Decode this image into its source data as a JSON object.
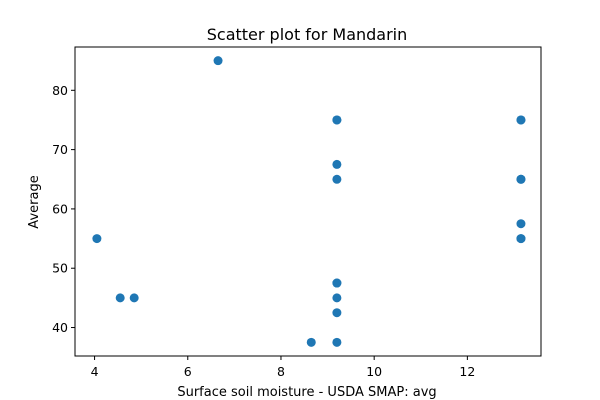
{
  "chart_data": {
    "type": "scatter",
    "title": "Scatter plot for Mandarin",
    "xlabel": "Surface soil moisture - USDA SMAP: avg",
    "ylabel": "Average",
    "xlim": [
      3.58,
      13.58
    ],
    "ylim": [
      35.2,
      87.3
    ],
    "xticks": [
      4,
      6,
      8,
      10,
      12
    ],
    "yticks": [
      40,
      50,
      60,
      70,
      80
    ],
    "grid": false,
    "marker_color": "#1f77b4",
    "points": [
      {
        "x": 6.65,
        "y": 85.0
      },
      {
        "x": 4.05,
        "y": 55.0
      },
      {
        "x": 4.55,
        "y": 45.0
      },
      {
        "x": 4.85,
        "y": 45.0
      },
      {
        "x": 8.65,
        "y": 37.5
      },
      {
        "x": 9.2,
        "y": 75.0
      },
      {
        "x": 9.2,
        "y": 75.0
      },
      {
        "x": 9.2,
        "y": 67.5
      },
      {
        "x": 9.2,
        "y": 65.0
      },
      {
        "x": 9.2,
        "y": 47.5
      },
      {
        "x": 9.2,
        "y": 47.5
      },
      {
        "x": 9.2,
        "y": 45.0
      },
      {
        "x": 9.2,
        "y": 42.5
      },
      {
        "x": 9.2,
        "y": 37.5
      },
      {
        "x": 13.15,
        "y": 75.0
      },
      {
        "x": 13.15,
        "y": 75.0
      },
      {
        "x": 13.15,
        "y": 65.0
      },
      {
        "x": 13.15,
        "y": 65.0
      },
      {
        "x": 13.15,
        "y": 57.5
      },
      {
        "x": 13.15,
        "y": 55.0
      },
      {
        "x": 13.15,
        "y": 55.0
      }
    ]
  }
}
